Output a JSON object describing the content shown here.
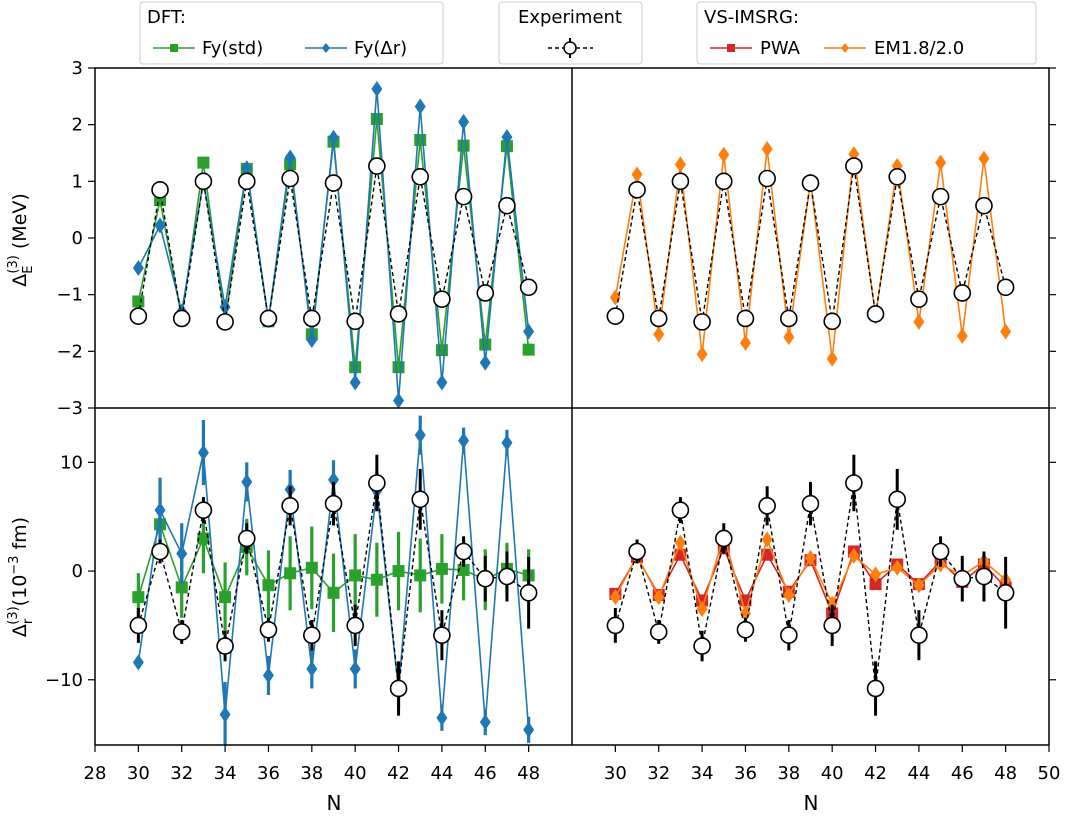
{
  "legends": {
    "dft": {
      "title": "DFT:",
      "entries": [
        {
          "label": "Fy(std)",
          "color": "#2ca02c",
          "marker": "square"
        },
        {
          "label": "Fy(Δr)",
          "color": "#1f77b4",
          "marker": "diamond"
        }
      ]
    },
    "experiment": {
      "title": "Experiment",
      "color": "#000000",
      "marker": "circle"
    },
    "imsrg": {
      "title": "VS-IMSRG:",
      "entries": [
        {
          "label": "PWA",
          "color": "#d62728",
          "marker": "square"
        },
        {
          "label": "EM1.8/2.0",
          "color": "#ff7f0e",
          "marker": "diamond"
        }
      ]
    }
  },
  "axes": {
    "xlabel": "N",
    "ylabel_top": {
      "main": "Δ",
      "sub": "E",
      "sup": "(3)",
      "unit": " (MeV)"
    },
    "ylabel_bottom": {
      "main": "Δ",
      "sub": "r",
      "sup": "(3)",
      "unit_pre": "(10",
      "unit_sup": "−3",
      "unit_post": " fm)"
    },
    "left_xticks": [
      28,
      30,
      32,
      34,
      36,
      38,
      40,
      42,
      44,
      46,
      48
    ],
    "right_xticks": [
      30,
      32,
      34,
      36,
      38,
      40,
      42,
      44,
      46,
      48,
      50
    ],
    "top_yticks": [
      {
        "v": 3,
        "t": "3"
      },
      {
        "v": 2,
        "t": "2"
      },
      {
        "v": 1,
        "t": "1"
      },
      {
        "v": 0,
        "t": "0"
      },
      {
        "v": -1,
        "t": "−1"
      },
      {
        "v": -2,
        "t": "−2"
      },
      {
        "v": -3,
        "t": "−3"
      }
    ],
    "bottom_yticks": [
      {
        "v": 10,
        "t": "10"
      },
      {
        "v": 0,
        "t": "0"
      },
      {
        "v": -10,
        "t": "−10"
      }
    ]
  },
  "chart_data": [
    {
      "type": "line",
      "panel": "top-left",
      "x": [
        30,
        31,
        32,
        33,
        34,
        35,
        36,
        37,
        38,
        39,
        40,
        41,
        42,
        43,
        44,
        45,
        46,
        47,
        48
      ],
      "xlim": [
        28,
        50
      ],
      "ylim": [
        -3,
        3
      ],
      "series": [
        {
          "name": "Experiment",
          "color": "#000000",
          "dashed": true,
          "marker": "circle",
          "values": [
            -1.38,
            0.85,
            -1.42,
            1.0,
            -1.48,
            1.0,
            -1.42,
            1.05,
            -1.42,
            0.97,
            -1.47,
            1.27,
            -1.34,
            1.08,
            -1.08,
            0.73,
            -0.97,
            0.57,
            -0.87
          ]
        },
        {
          "name": "Fy(std)",
          "color": "#2ca02c",
          "marker": "square",
          "values": [
            -1.12,
            0.67,
            -1.42,
            1.33,
            -1.48,
            1.22,
            -1.47,
            1.3,
            -1.7,
            1.7,
            -2.28,
            2.1,
            -2.28,
            1.73,
            -1.98,
            1.63,
            -1.88,
            1.62,
            -1.97
          ]
        },
        {
          "name": "Fy(Δr)",
          "color": "#1f77b4",
          "marker": "diamond",
          "values": [
            -0.53,
            0.22,
            -1.3,
            1.0,
            -1.22,
            1.23,
            -1.45,
            1.42,
            -1.8,
            1.77,
            -2.55,
            2.63,
            -2.87,
            2.32,
            -2.55,
            2.05,
            -2.2,
            1.78,
            -1.65
          ]
        }
      ]
    },
    {
      "type": "line",
      "panel": "top-right",
      "x": [
        30,
        31,
        32,
        33,
        34,
        35,
        36,
        37,
        38,
        39,
        40,
        41,
        42,
        43,
        44,
        45,
        46,
        47,
        48
      ],
      "xlim": [
        28,
        50
      ],
      "ylim": [
        -3,
        3
      ],
      "series": [
        {
          "name": "Experiment",
          "color": "#000000",
          "dashed": true,
          "marker": "circle",
          "values": [
            -1.38,
            0.85,
            -1.42,
            1.0,
            -1.48,
            1.0,
            -1.42,
            1.05,
            -1.42,
            0.97,
            -1.47,
            1.27,
            -1.34,
            1.08,
            -1.08,
            0.73,
            -0.97,
            0.57,
            -0.87
          ]
        },
        {
          "name": "EM1.8/2.0",
          "color": "#ff7f0e",
          "marker": "diamond",
          "values": [
            -1.05,
            1.12,
            -1.7,
            1.3,
            -2.05,
            1.47,
            -1.85,
            1.57,
            -1.75,
            1.0,
            -2.13,
            1.48,
            -1.38,
            1.27,
            -1.48,
            1.33,
            -1.73,
            1.4,
            -1.65
          ]
        }
      ]
    },
    {
      "type": "line",
      "panel": "bottom-left",
      "x": [
        30,
        31,
        32,
        33,
        34,
        35,
        36,
        37,
        38,
        39,
        40,
        41,
        42,
        43,
        44,
        45,
        46,
        47,
        48
      ],
      "xlim": [
        28,
        50
      ],
      "ylim": [
        -16,
        15
      ],
      "series": [
        {
          "name": "Experiment",
          "color": "#000000",
          "dashed": true,
          "marker": "circle",
          "values": [
            -5.0,
            1.8,
            -5.6,
            5.6,
            -6.9,
            3.0,
            -5.4,
            6.0,
            -5.9,
            6.2,
            -5.0,
            8.1,
            -10.8,
            6.6,
            -5.9,
            1.8,
            -0.7,
            -0.5,
            -2.0
          ],
          "errors": [
            1.6,
            1.1,
            1.1,
            1.2,
            1.4,
            1.4,
            1.1,
            1.8,
            1.4,
            2.0,
            1.9,
            2.6,
            2.5,
            2.8,
            2.3,
            1.4,
            2.1,
            2.3,
            3.3
          ]
        },
        {
          "name": "Fy(std)",
          "color": "#2ca02c",
          "marker": "square",
          "values": [
            -2.4,
            4.3,
            -1.5,
            3.0,
            -2.4,
            2.2,
            -1.3,
            -0.2,
            0.3,
            -2.0,
            -0.4,
            -0.8,
            0.0,
            -0.4,
            0.2,
            0.1,
            -0.8,
            0.2,
            -0.4
          ],
          "errors": [
            2.2,
            2.5,
            2.8,
            3.2,
            3.2,
            2.6,
            3.2,
            3.4,
            3.8,
            3.6,
            3.8,
            3.4,
            3.6,
            3.4,
            3.2,
            2.8,
            2.8,
            2.4,
            2.4
          ]
        },
        {
          "name": "Fy(Δr)",
          "color": "#1f77b4",
          "marker": "diamond",
          "values": [
            -8.4,
            5.6,
            1.6,
            10.9,
            -13.2,
            8.2,
            -9.6,
            7.5,
            -9.0,
            8.4,
            -9.0,
            7.4,
            -10.9,
            12.5,
            -13.5,
            12.0,
            -13.9,
            11.8,
            -14.6
          ],
          "errors": [
            0.4,
            3.0,
            2.8,
            3.0,
            3.0,
            1.8,
            1.8,
            1.8,
            1.8,
            1.8,
            1.8,
            1.8,
            1.8,
            1.8,
            1.2,
            1.2,
            1.2,
            1.2,
            1.2
          ]
        }
      ]
    },
    {
      "type": "line",
      "panel": "bottom-right",
      "x": [
        30,
        31,
        32,
        33,
        34,
        35,
        36,
        37,
        38,
        39,
        40,
        41,
        42,
        43,
        44,
        45,
        46,
        47,
        48
      ],
      "xlim": [
        28,
        50
      ],
      "ylim": [
        -16,
        15
      ],
      "series": [
        {
          "name": "Experiment",
          "color": "#000000",
          "dashed": true,
          "marker": "circle",
          "values": [
            -5.0,
            1.8,
            -5.6,
            5.6,
            -6.9,
            3.0,
            -5.4,
            6.0,
            -5.9,
            6.2,
            -5.0,
            8.1,
            -10.8,
            6.6,
            -5.9,
            1.8,
            -0.7,
            -0.5,
            -2.0
          ],
          "errors": [
            1.6,
            1.1,
            1.1,
            1.2,
            1.4,
            1.4,
            1.1,
            1.8,
            1.4,
            2.0,
            1.9,
            2.6,
            2.5,
            2.8,
            2.3,
            1.4,
            2.1,
            2.3,
            3.3
          ]
        },
        {
          "name": "PWA",
          "color": "#d62728",
          "marker": "square",
          "values": [
            -2.1,
            1.3,
            -2.2,
            1.5,
            -2.7,
            2.1,
            -2.7,
            1.5,
            -1.9,
            1.0,
            -3.9,
            1.8,
            -1.2,
            0.6,
            -1.2,
            0.9,
            -1.0,
            0.6,
            -1.5
          ]
        },
        {
          "name": "EM1.8/2.0",
          "color": "#ff7f0e",
          "marker": "diamond",
          "values": [
            -2.4,
            1.4,
            -2.4,
            2.6,
            -3.5,
            3.3,
            -3.9,
            2.9,
            -2.2,
            1.2,
            -3.0,
            1.4,
            -0.3,
            0.3,
            -1.3,
            0.6,
            -0.4,
            0.9,
            -0.8
          ]
        }
      ]
    }
  ]
}
